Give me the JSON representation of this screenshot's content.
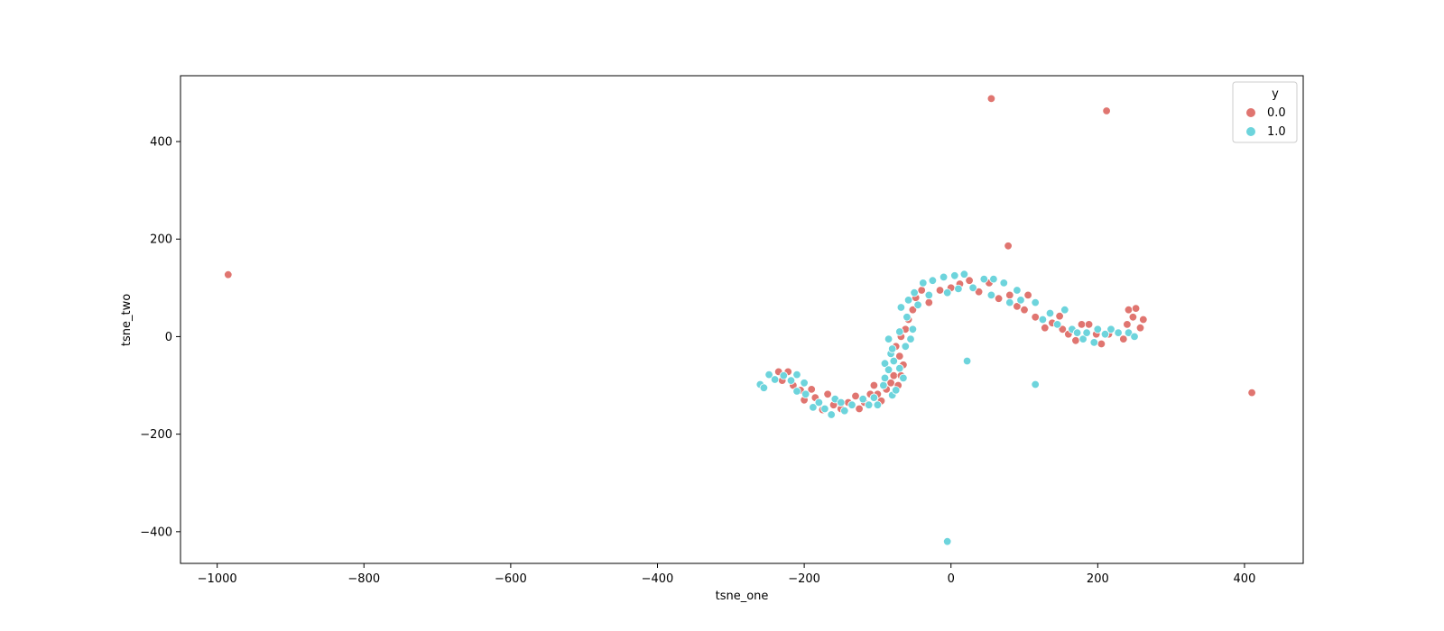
{
  "chart_data": {
    "type": "scatter",
    "xlabel": "tsne_one",
    "ylabel": "tsne_two",
    "xlim": [
      -1050,
      480
    ],
    "ylim": [
      -465,
      535
    ],
    "xticks": [
      -1000,
      -800,
      -600,
      -400,
      -200,
      0,
      200,
      400
    ],
    "yticks": [
      -400,
      -200,
      0,
      200,
      400
    ],
    "grid": false,
    "legend": {
      "title": "y",
      "placement": "top-right",
      "entries": [
        {
          "label": "0.0",
          "color": "#e07570"
        },
        {
          "label": "1.0",
          "color": "#6dd4dc"
        }
      ]
    },
    "series": [
      {
        "name": "0.0",
        "color": "#e07570",
        "points": [
          [
            -985,
            127
          ],
          [
            55,
            488
          ],
          [
            212,
            463
          ],
          [
            78,
            186
          ],
          [
            410,
            -115
          ],
          [
            -235,
            -72
          ],
          [
            -222,
            -72
          ],
          [
            -230,
            -90
          ],
          [
            -215,
            -100
          ],
          [
            -205,
            -110
          ],
          [
            -200,
            -130
          ],
          [
            -190,
            -108
          ],
          [
            -185,
            -125
          ],
          [
            -175,
            -150
          ],
          [
            -168,
            -118
          ],
          [
            -160,
            -140
          ],
          [
            -150,
            -148
          ],
          [
            -140,
            -135
          ],
          [
            -130,
            -122
          ],
          [
            -125,
            -148
          ],
          [
            -118,
            -135
          ],
          [
            -110,
            -118
          ],
          [
            -105,
            -100
          ],
          [
            -100,
            -118
          ],
          [
            -95,
            -132
          ],
          [
            -88,
            -108
          ],
          [
            -82,
            -95
          ],
          [
            -78,
            -80
          ],
          [
            -72,
            -100
          ],
          [
            -68,
            -80
          ],
          [
            -65,
            -58
          ],
          [
            -70,
            -40
          ],
          [
            -75,
            -20
          ],
          [
            -68,
            0
          ],
          [
            -62,
            15
          ],
          [
            -58,
            35
          ],
          [
            -52,
            55
          ],
          [
            -48,
            80
          ],
          [
            -40,
            95
          ],
          [
            -30,
            70
          ],
          [
            -15,
            95
          ],
          [
            0,
            100
          ],
          [
            12,
            108
          ],
          [
            25,
            115
          ],
          [
            38,
            92
          ],
          [
            52,
            110
          ],
          [
            65,
            78
          ],
          [
            80,
            85
          ],
          [
            90,
            62
          ],
          [
            100,
            55
          ],
          [
            105,
            85
          ],
          [
            115,
            40
          ],
          [
            128,
            18
          ],
          [
            138,
            28
          ],
          [
            148,
            42
          ],
          [
            152,
            15
          ],
          [
            160,
            5
          ],
          [
            170,
            -8
          ],
          [
            178,
            25
          ],
          [
            188,
            25
          ],
          [
            198,
            5
          ],
          [
            205,
            -15
          ],
          [
            215,
            5
          ],
          [
            235,
            -5
          ],
          [
            240,
            25
          ],
          [
            242,
            55
          ],
          [
            248,
            40
          ],
          [
            252,
            58
          ],
          [
            258,
            18
          ],
          [
            262,
            35
          ]
        ]
      },
      {
        "name": "1.0",
        "color": "#6dd4dc",
        "points": [
          [
            -260,
            -98
          ],
          [
            -255,
            -105
          ],
          [
            -248,
            -78
          ],
          [
            -240,
            -88
          ],
          [
            -228,
            -80
          ],
          [
            -218,
            -90
          ],
          [
            -210,
            -78
          ],
          [
            -210,
            -112
          ],
          [
            -200,
            -95
          ],
          [
            -198,
            -118
          ],
          [
            -188,
            -145
          ],
          [
            -180,
            -135
          ],
          [
            -172,
            -148
          ],
          [
            -163,
            -160
          ],
          [
            -158,
            -128
          ],
          [
            -150,
            -135
          ],
          [
            -145,
            -152
          ],
          [
            -135,
            -140
          ],
          [
            -120,
            -128
          ],
          [
            -112,
            -140
          ],
          [
            -105,
            -125
          ],
          [
            -100,
            -140
          ],
          [
            -92,
            -100
          ],
          [
            -90,
            -85
          ],
          [
            -90,
            -55
          ],
          [
            -85,
            -68
          ],
          [
            -85,
            -5
          ],
          [
            -82,
            -35
          ],
          [
            -80,
            -25
          ],
          [
            -80,
            -120
          ],
          [
            -78,
            -50
          ],
          [
            -75,
            -110
          ],
          [
            -70,
            -65
          ],
          [
            -70,
            10
          ],
          [
            -68,
            60
          ],
          [
            -65,
            -85
          ],
          [
            -62,
            -20
          ],
          [
            -60,
            40
          ],
          [
            -58,
            75
          ],
          [
            -55,
            -5
          ],
          [
            -52,
            15
          ],
          [
            -50,
            90
          ],
          [
            -45,
            65
          ],
          [
            -38,
            110
          ],
          [
            -30,
            85
          ],
          [
            -25,
            115
          ],
          [
            -10,
            122
          ],
          [
            -5,
            90
          ],
          [
            5,
            125
          ],
          [
            10,
            98
          ],
          [
            18,
            128
          ],
          [
            22,
            -50
          ],
          [
            30,
            100
          ],
          [
            45,
            118
          ],
          [
            55,
            85
          ],
          [
            58,
            118
          ],
          [
            72,
            110
          ],
          [
            80,
            70
          ],
          [
            90,
            95
          ],
          [
            95,
            75
          ],
          [
            115,
            70
          ],
          [
            115,
            -98
          ],
          [
            125,
            35
          ],
          [
            135,
            48
          ],
          [
            145,
            25
          ],
          [
            155,
            55
          ],
          [
            165,
            15
          ],
          [
            172,
            8
          ],
          [
            180,
            -5
          ],
          [
            185,
            8
          ],
          [
            195,
            -12
          ],
          [
            200,
            15
          ],
          [
            210,
            5
          ],
          [
            218,
            15
          ],
          [
            228,
            8
          ],
          [
            242,
            8
          ],
          [
            250,
            0
          ],
          [
            -5,
            -420
          ]
        ]
      }
    ]
  }
}
